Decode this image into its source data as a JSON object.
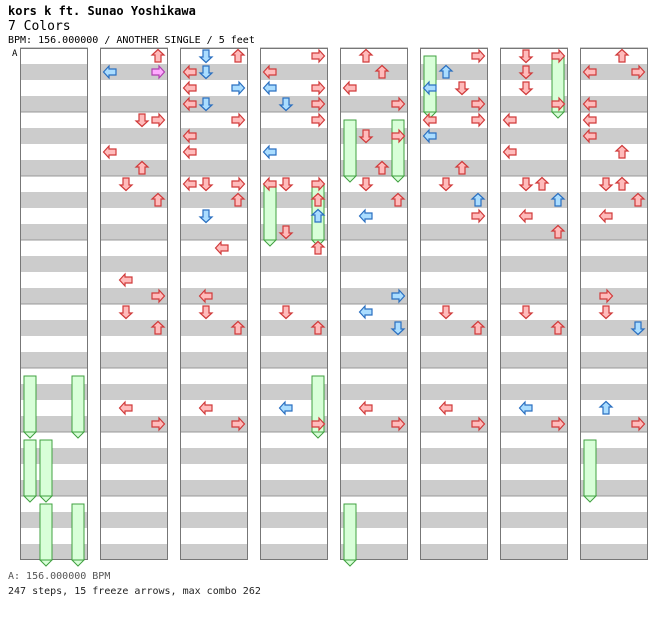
{
  "header": {
    "artist": "kors k ft. Sunao Yoshikawa",
    "song": "7 Colors",
    "info": "BPM: 156.000000 / ANOTHER SINGLE / 5 feet"
  },
  "marker": "A",
  "footer": {
    "bpm": "A: 156.000000 BPM",
    "summary": "247 steps, 15 freeze arrows, max combo 262"
  },
  "colors": {
    "stripe": "#cccccc",
    "red_fill": "#ffbbbb",
    "red_stroke": "#d03a3a",
    "blue_fill": "#aaddff",
    "blue_stroke": "#2a6fc0",
    "pink_fill": "#ffaaff",
    "pink_stroke": "#b040b0",
    "freeze_fill": "#d8ffd8",
    "freeze_stroke": "#40a040"
  },
  "chart_data": {
    "type": "step-chart",
    "columns": 8,
    "measures_per_column": 8,
    "lanes": [
      "left",
      "down",
      "up",
      "right"
    ],
    "notes": [
      [
        1,
        0,
        3,
        "r",
        "up"
      ],
      [
        1,
        1,
        0,
        "b",
        "left"
      ],
      [
        1,
        1,
        3,
        "p",
        "right"
      ],
      [
        2,
        0,
        3,
        "r",
        "up"
      ],
      [
        2,
        0,
        1,
        "b",
        "down"
      ],
      [
        2,
        1,
        0,
        "r",
        "left"
      ],
      [
        2,
        1,
        1,
        "b",
        "down"
      ],
      [
        2,
        2,
        0,
        "r",
        "left"
      ],
      [
        2,
        2,
        3,
        "b",
        "right"
      ],
      [
        2,
        3,
        0,
        "r",
        "left"
      ],
      [
        3,
        0,
        3,
        "r",
        "right"
      ],
      [
        3,
        1,
        0,
        "r",
        "left"
      ],
      [
        3,
        2,
        0,
        "b",
        "left"
      ],
      [
        3,
        2,
        3,
        "r",
        "right"
      ],
      [
        3,
        3,
        3,
        "r",
        "right"
      ],
      [
        4,
        0,
        1,
        "r",
        "up"
      ],
      [
        4,
        1,
        2,
        "r",
        "up"
      ],
      [
        4,
        2,
        0,
        "r",
        "left"
      ],
      [
        4,
        3,
        3,
        "r",
        "right"
      ],
      [
        5,
        0,
        3,
        "r",
        "right"
      ],
      [
        5,
        1,
        1,
        "b",
        "up"
      ],
      [
        5,
        2,
        0,
        "b",
        "left"
      ],
      [
        5,
        2,
        2,
        "r",
        "down"
      ],
      [
        5,
        3,
        3,
        "r",
        "right"
      ],
      [
        6,
        0,
        1,
        "r",
        "down"
      ],
      [
        6,
        1,
        1,
        "r",
        "down"
      ],
      [
        6,
        2,
        1,
        "r",
        "down"
      ],
      [
        6,
        3,
        3,
        "r",
        "right"
      ],
      [
        6,
        0,
        3,
        "r",
        "right"
      ],
      [
        7,
        0,
        2,
        "r",
        "up"
      ],
      [
        7,
        1,
        0,
        "r",
        "left"
      ],
      [
        7,
        1,
        3,
        "r",
        "right"
      ],
      [
        7,
        3,
        0,
        "r",
        "left"
      ],
      [
        1,
        0,
        7,
        "r",
        "right"
      ],
      [
        1,
        2,
        4,
        "r",
        "left"
      ],
      [
        1,
        3,
        6,
        "r",
        "up"
      ],
      [
        1,
        4,
        2,
        "r",
        "down"
      ],
      [
        2,
        0,
        7,
        "r",
        "right"
      ],
      [
        2,
        1,
        4,
        "r",
        "left"
      ],
      [
        2,
        2,
        4,
        "r",
        "left"
      ],
      [
        2,
        3,
        1,
        "b",
        "down"
      ],
      [
        2,
        4,
        4,
        "r",
        "left"
      ],
      [
        2,
        4,
        7,
        "r",
        "right"
      ],
      [
        3,
        0,
        7,
        "r",
        "right"
      ],
      [
        3,
        2,
        4,
        "b",
        "left"
      ],
      [
        3,
        3,
        1,
        "b",
        "down"
      ],
      [
        3,
        4,
        4,
        "r",
        "left"
      ],
      [
        3,
        4,
        7,
        "r",
        "right"
      ],
      [
        4,
        1,
        5,
        "r",
        "down"
      ],
      [
        4,
        1,
        7,
        "r",
        "right"
      ],
      [
        4,
        3,
        6,
        "r",
        "up"
      ],
      [
        5,
        0,
        4,
        "r",
        "left"
      ],
      [
        5,
        0,
        7,
        "r",
        "right"
      ],
      [
        5,
        1,
        4,
        "b",
        "left"
      ],
      [
        5,
        3,
        6,
        "r",
        "up"
      ],
      [
        6,
        0,
        4,
        "r",
        "left"
      ],
      [
        6,
        2,
        4,
        "r",
        "left"
      ],
      [
        6,
        4,
        6,
        "r",
        "up"
      ],
      [
        7,
        0,
        4,
        "r",
        "left"
      ],
      [
        7,
        1,
        4,
        "r",
        "left"
      ],
      [
        7,
        2,
        6,
        "r",
        "up"
      ],
      [
        7,
        4,
        6,
        "r",
        "up"
      ],
      [
        1,
        0,
        9,
        "r",
        "down"
      ],
      [
        1,
        1,
        11,
        "r",
        "up"
      ],
      [
        1,
        2,
        13,
        "r",
        "left"
      ],
      [
        1,
        3,
        15,
        "r",
        "right"
      ],
      [
        2,
        0,
        9,
        "r",
        "down"
      ],
      [
        2,
        1,
        11,
        "r",
        "up"
      ],
      [
        2,
        2,
        9,
        "b",
        "down"
      ],
      [
        2,
        3,
        13,
        "r",
        "left"
      ],
      [
        2,
        4,
        10,
        "r",
        "left"
      ],
      [
        3,
        0,
        9,
        "r",
        "down"
      ],
      [
        3,
        1,
        11,
        "r",
        "up"
      ],
      [
        3,
        2,
        11,
        "b",
        "up"
      ],
      [
        3,
        3,
        9,
        "r",
        "down"
      ],
      [
        3,
        4,
        11,
        "r",
        "up"
      ],
      [
        4,
        0,
        9,
        "r",
        "down"
      ],
      [
        4,
        1,
        11,
        "r",
        "up"
      ],
      [
        4,
        2,
        9,
        "b",
        "left"
      ],
      [
        4,
        3,
        15,
        "b",
        "right"
      ],
      [
        5,
        0,
        9,
        "r",
        "down"
      ],
      [
        5,
        1,
        11,
        "b",
        "up"
      ],
      [
        5,
        2,
        11,
        "r",
        "right"
      ],
      [
        6,
        0,
        9,
        "r",
        "down"
      ],
      [
        6,
        1,
        11,
        "b",
        "up"
      ],
      [
        6,
        2,
        9,
        "r",
        "left"
      ],
      [
        6,
        3,
        11,
        "r",
        "up"
      ],
      [
        7,
        0,
        9,
        "r",
        "down"
      ],
      [
        7,
        1,
        11,
        "r",
        "up"
      ],
      [
        7,
        2,
        9,
        "r",
        "left"
      ],
      [
        7,
        3,
        13,
        "r",
        "right"
      ],
      [
        1,
        0,
        17,
        "r",
        "down"
      ],
      [
        1,
        1,
        19,
        "r",
        "up"
      ],
      [
        1,
        2,
        21,
        "r",
        "left"
      ],
      [
        1,
        3,
        23,
        "r",
        "right"
      ],
      [
        2,
        0,
        17,
        "r",
        "down"
      ],
      [
        2,
        1,
        19,
        "r",
        "up"
      ],
      [
        2,
        2,
        21,
        "r",
        "left"
      ],
      [
        2,
        3,
        23,
        "r",
        "right"
      ],
      [
        3,
        0,
        17,
        "r",
        "down"
      ],
      [
        3,
        1,
        19,
        "r",
        "up"
      ],
      [
        3,
        2,
        21,
        "b",
        "left"
      ],
      [
        3,
        3,
        23,
        "r",
        "right"
      ],
      [
        4,
        0,
        17,
        "b",
        "left"
      ],
      [
        4,
        1,
        19,
        "b",
        "down"
      ],
      [
        4,
        2,
        21,
        "r",
        "left"
      ],
      [
        4,
        3,
        23,
        "r",
        "right"
      ],
      [
        5,
        0,
        17,
        "r",
        "down"
      ],
      [
        5,
        1,
        19,
        "r",
        "up"
      ],
      [
        5,
        2,
        21,
        "r",
        "left"
      ],
      [
        5,
        3,
        23,
        "r",
        "right"
      ],
      [
        6,
        0,
        17,
        "r",
        "down"
      ],
      [
        6,
        1,
        19,
        "r",
        "up"
      ],
      [
        6,
        2,
        21,
        "b",
        "left"
      ],
      [
        6,
        3,
        23,
        "r",
        "right"
      ],
      [
        7,
        0,
        17,
        "r",
        "down"
      ],
      [
        7,
        1,
        19,
        "b",
        "down"
      ],
      [
        7,
        2,
        21,
        "b",
        "up"
      ],
      [
        7,
        3,
        23,
        "r",
        "right"
      ]
    ],
    "freezes": [
      [
        0,
        5,
        0,
        6,
        0
      ],
      [
        0,
        5,
        3,
        6,
        0
      ],
      [
        0,
        6,
        0,
        7,
        0
      ],
      [
        0,
        6,
        1,
        7,
        0
      ],
      [
        0,
        7,
        1,
        8,
        0
      ],
      [
        0,
        7,
        3,
        8,
        0
      ],
      [
        3,
        2,
        0,
        3,
        0
      ],
      [
        3,
        2,
        3,
        3,
        0
      ],
      [
        3,
        5,
        3,
        6,
        0
      ],
      [
        4,
        1,
        0,
        2,
        0
      ],
      [
        4,
        1,
        3,
        2,
        0
      ],
      [
        4,
        7,
        0,
        8,
        0
      ],
      [
        5,
        0,
        0,
        1,
        0
      ],
      [
        6,
        0,
        3,
        1,
        0
      ],
      [
        7,
        6,
        0,
        7,
        0
      ]
    ]
  }
}
